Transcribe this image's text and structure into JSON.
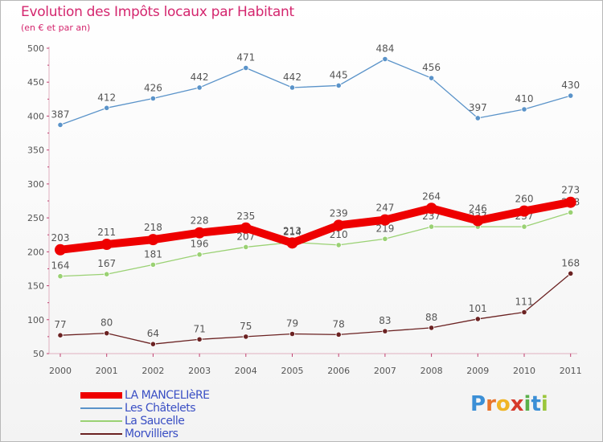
{
  "chart_data": {
    "type": "line",
    "title": "Evolution des Impôts locaux par Habitant",
    "subtitle": "(en € et par an)",
    "categories": [
      "2000",
      "2001",
      "2002",
      "2003",
      "2004",
      "2005",
      "2006",
      "2007",
      "2008",
      "2009",
      "2010",
      "2011"
    ],
    "ylim": [
      50,
      500
    ],
    "yticks": [
      50,
      100,
      150,
      200,
      250,
      300,
      350,
      400,
      450,
      500
    ],
    "grid": false,
    "legend_position": "bottom-left",
    "series": [
      {
        "name": "Les Châtelets",
        "color": "#5a93c9",
        "values": [
          387,
          412,
          426,
          442,
          471,
          442,
          445,
          484,
          456,
          397,
          410,
          430
        ],
        "bold": false
      },
      {
        "name": "La Saucelle",
        "color": "#9ad173",
        "values": [
          164,
          167,
          181,
          196,
          207,
          214,
          210,
          219,
          237,
          237,
          237,
          258
        ],
        "bold": false
      },
      {
        "name": "Morvilliers",
        "color": "#6b2222",
        "values": [
          77,
          80,
          64,
          71,
          75,
          79,
          78,
          83,
          88,
          101,
          111,
          168
        ],
        "bold": false
      },
      {
        "name": "LA MANCELIèRE",
        "color": "#ee0000",
        "values": [
          203,
          211,
          218,
          228,
          235,
          213,
          239,
          247,
          264,
          246,
          260,
          273
        ],
        "bold": true
      }
    ],
    "legend_order": [
      "LA MANCELIèRE",
      "Les Châtelets",
      "La Saucelle",
      "Morvilliers"
    ]
  },
  "logo": {
    "letters": [
      "P",
      "r",
      "o",
      "x",
      "i",
      "t",
      "i"
    ],
    "colors": [
      "#3b8fd6",
      "#e8742c",
      "#f0b526",
      "#d63a2c",
      "#5ab04a",
      "#3b8fd6",
      "#9bc63c"
    ]
  }
}
